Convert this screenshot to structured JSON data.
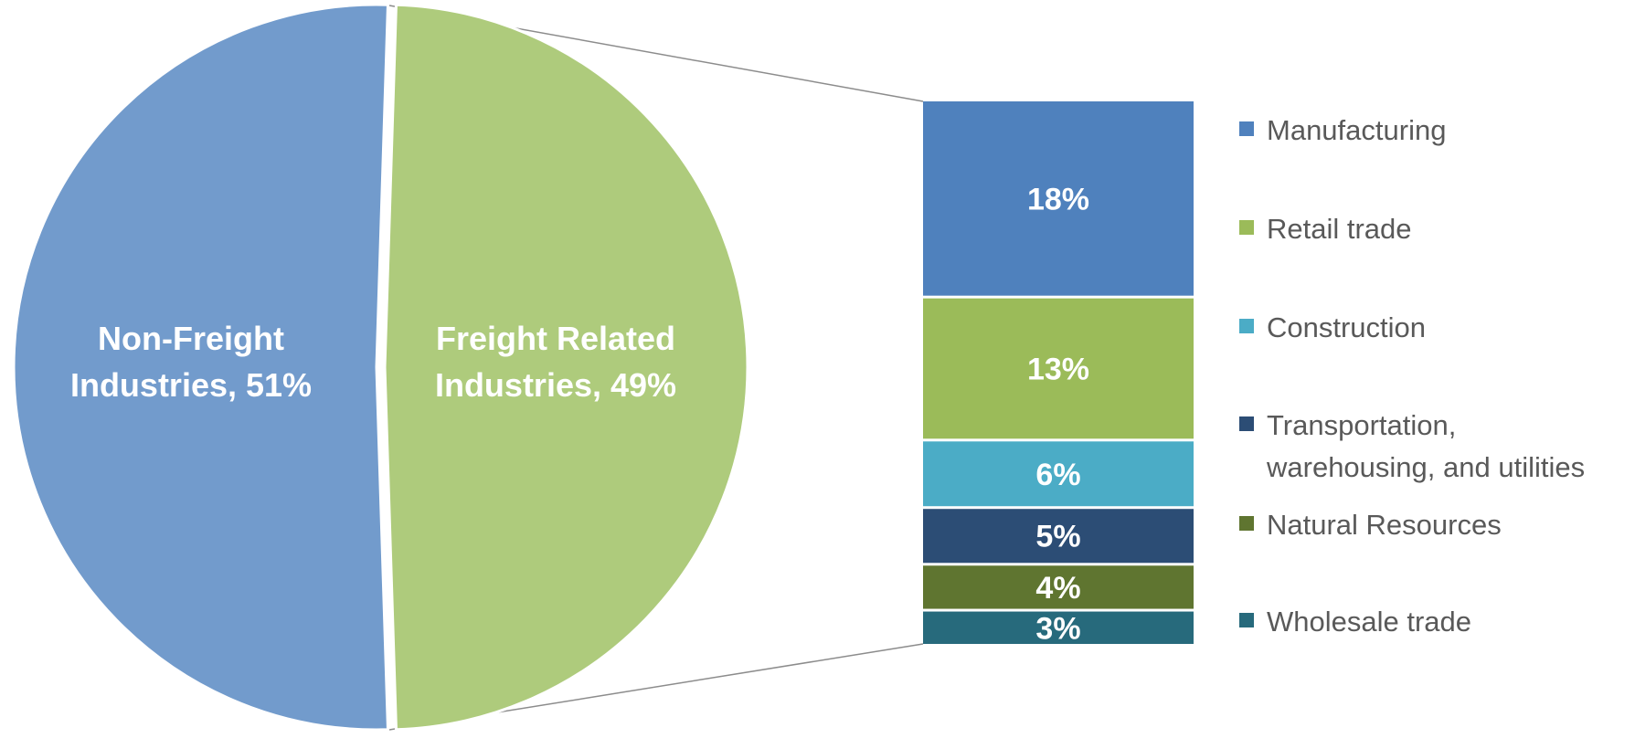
{
  "chart_data": {
    "type": "bar-of-pie",
    "pie": {
      "slices": [
        {
          "label_lines": [
            "Non-Freight",
            "Industries, 51%"
          ],
          "value": 51,
          "color": "#729bcc"
        },
        {
          "label_lines": [
            "Freight Related",
            "Industries, 49%"
          ],
          "value": 49,
          "color": "#aecb7c"
        }
      ]
    },
    "bar": {
      "segments": [
        {
          "name": "Manufacturing",
          "value": 18,
          "label": "18%",
          "color": "#4f81bd"
        },
        {
          "name": "Retail trade",
          "value": 13,
          "label": "13%",
          "color": "#9bbb59"
        },
        {
          "name": "Construction",
          "value": 6,
          "label": "6%",
          "color": "#4bacc6"
        },
        {
          "name": "Transportation, warehousing, and utilities",
          "legend_lines": [
            "Transportation,",
            "warehousing, and utilities"
          ],
          "value": 5,
          "label": "5%",
          "color": "#2c4d75"
        },
        {
          "name": "Natural Resources",
          "value": 4,
          "label": "4%",
          "color": "#5f7530"
        },
        {
          "name": "Wholesale trade",
          "value": 3,
          "label": "3%",
          "color": "#276a7c"
        }
      ]
    },
    "legend_position": "right"
  }
}
